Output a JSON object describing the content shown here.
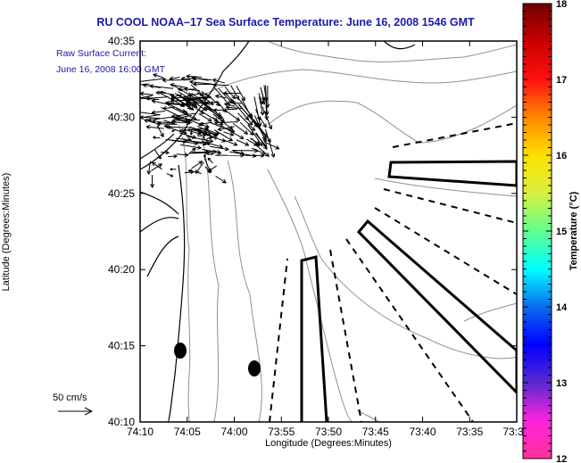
{
  "title": "RU COOL  NOAA–17  Sea Surface Temperature:  June 16, 2008 1546 GMT",
  "overlay": {
    "line1": "Raw Surface Current:",
    "line2": "June 16, 2008 16:00 GMT",
    "scale_label": "50 cm/s"
  },
  "axes": {
    "xlabel": "Longitude (Degrees:Minutes)",
    "ylabel": "Latitude (Degrees:Minutes)",
    "xticks": [
      "74:10",
      "74:05",
      "74:00",
      "73:55",
      "73:50",
      "73:45",
      "73:40",
      "73:35",
      "73:3"
    ],
    "yticks": [
      "40:35",
      "40:30",
      "40:25",
      "40:20",
      "40:15",
      "40:10"
    ]
  },
  "colorbar": {
    "label": "Temperature (°C)",
    "ticks": [
      "18",
      "17",
      "16",
      "15",
      "14",
      "13",
      "12"
    ],
    "min": 12,
    "max": 18,
    "stops": [
      "#ff3399",
      "#ff22dd",
      "#5a2ad0",
      "#0000ff",
      "#0a6cf0",
      "#00ffff",
      "#60ff90",
      "#d8f040",
      "#ffe000",
      "#ff8800",
      "#ff1010",
      "#cc0000",
      "#700000"
    ]
  },
  "chart_data": {
    "type": "map",
    "title": "RU COOL  NOAA-17  Sea Surface Temperature:  June 16, 2008 1546 GMT",
    "xlabel": "Longitude (Degrees:Minutes)",
    "ylabel": "Latitude (Degrees:Minutes)",
    "xlim": [
      "74:10",
      "73:30"
    ],
    "ylim": [
      "40:10",
      "40:35"
    ],
    "colorbar_range": [
      12,
      18
    ],
    "colorbar_units": "°C",
    "legend": "50 cm/s reference vector"
  },
  "colors": {
    "title": "#1a1aa8",
    "contour": "#909090",
    "coast": "#000000"
  }
}
